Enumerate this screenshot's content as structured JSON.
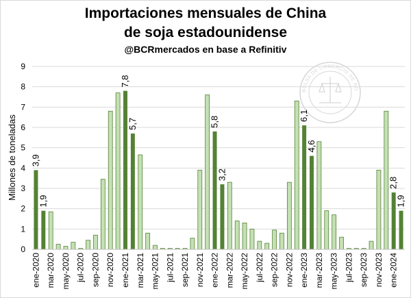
{
  "chart_data": {
    "type": "bar",
    "title": "Importaciones mensuales de China",
    "title_line2": "de soja estadounidense",
    "subtitle": "@BCRmercados en base a Refinitiv",
    "ylabel": "Millones de toneladas",
    "ylim": [
      0,
      9
    ],
    "yticks": [
      "0",
      "1",
      "2",
      "3",
      "4",
      "5",
      "6",
      "7",
      "8",
      "9"
    ],
    "grid": true,
    "legend": "none",
    "colors": {
      "light_fill": "#c5e0b4",
      "light_border": "#548235",
      "dark_fill": "#548235",
      "gridline": "#d9d9d9",
      "axis": "#bfbfbf"
    },
    "categories": [
      "ene-2020",
      "feb-2020",
      "mar-2020",
      "abr-2020",
      "may-2020",
      "jun-2020",
      "jul-2020",
      "ago-2020",
      "sep-2020",
      "oct-2020",
      "nov-2020",
      "dic-2020",
      "ene-2021",
      "feb-2021",
      "mar-2021",
      "abr-2021",
      "may-2021",
      "jun-2021",
      "jul-2021",
      "ago-2021",
      "sep-2021",
      "oct-2021",
      "nov-2021",
      "dic-2021",
      "ene-2022",
      "feb-2022",
      "mar-2022",
      "abr-2022",
      "may-2022",
      "jun-2022",
      "jul-2022",
      "ago-2022",
      "sep-2022",
      "oct-2022",
      "nov-2022",
      "dic-2022",
      "ene-2023",
      "feb-2023",
      "mar-2023",
      "abr-2023",
      "may-2023",
      "jun-2023",
      "jul-2023",
      "ago-2023",
      "sep-2023",
      "oct-2023",
      "nov-2023",
      "dic-2023",
      "ene-2024",
      "feb-2024"
    ],
    "xtick_labels": [
      "ene-2020",
      "mar-2020",
      "may-2020",
      "jul-2020",
      "sep-2020",
      "nov-2020",
      "ene-2021",
      "mar-2021",
      "may-2021",
      "jul-2021",
      "sep-2021",
      "nov-2021",
      "ene-2022",
      "mar-2022",
      "may-2022",
      "jul-2022",
      "sep-2022",
      "nov-2022",
      "ene-2023",
      "mar-2023",
      "may-2023",
      "jul-2023",
      "sep-2023",
      "nov-2023",
      "ene-2024"
    ],
    "values": [
      3.9,
      1.9,
      1.85,
      0.25,
      0.15,
      0.35,
      0.05,
      0.45,
      0.7,
      3.45,
      6.8,
      7.7,
      7.8,
      5.7,
      4.65,
      0.8,
      0.2,
      0.05,
      0.05,
      0.05,
      0.05,
      0.55,
      3.9,
      7.6,
      5.8,
      3.2,
      3.3,
      1.4,
      1.3,
      1.0,
      0.4,
      0.3,
      0.95,
      0.8,
      3.3,
      7.3,
      6.1,
      4.6,
      5.3,
      1.9,
      1.7,
      0.6,
      0.05,
      0.05,
      0.05,
      0.4,
      3.9,
      6.8,
      2.8,
      1.9
    ],
    "highlighted": [
      0,
      1,
      12,
      13,
      24,
      25,
      36,
      37,
      48,
      49
    ],
    "data_labels": [
      {
        "index": 0,
        "text": "3,9"
      },
      {
        "index": 1,
        "text": "1,9"
      },
      {
        "index": 12,
        "text": "7,8"
      },
      {
        "index": 13,
        "text": "5,7"
      },
      {
        "index": 24,
        "text": "5,8"
      },
      {
        "index": 25,
        "text": "3,2"
      },
      {
        "index": 36,
        "text": "6,1"
      },
      {
        "index": 37,
        "text": "4,6"
      },
      {
        "index": 48,
        "text": "2,8"
      },
      {
        "index": 49,
        "text": "1,9"
      }
    ],
    "watermark": "BOLSA DE COMERCIO DE ROSARIO"
  }
}
